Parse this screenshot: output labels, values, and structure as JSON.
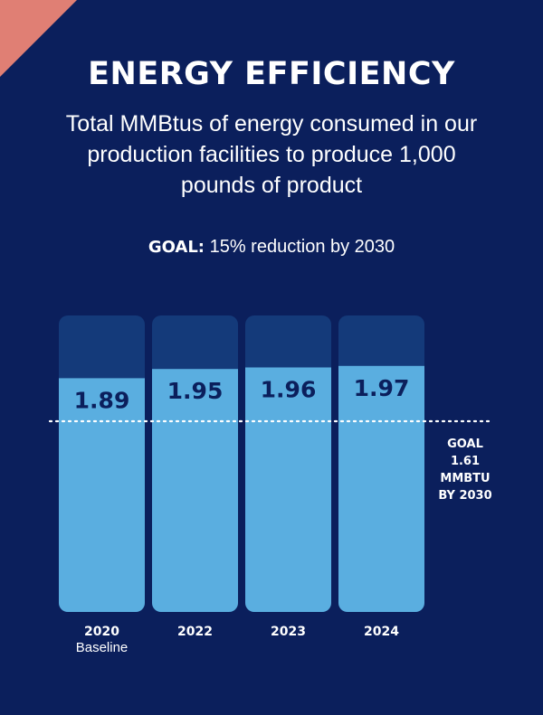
{
  "header": {
    "title": "ENERGY EFFICIENCY",
    "subtitle": "Total MMBtus of energy consumed in our production facilities to produce 1,000 pounds of product",
    "goal_label": "GOAL:",
    "goal_text": "15% reduction by 2030"
  },
  "goal_annotation": [
    "GOAL",
    "1.61",
    "MMBTU",
    "BY 2030"
  ],
  "colors": {
    "background": "#0b1f5c",
    "bar_track": "#143a7a",
    "bar_fill": "#5aaee0",
    "value_text": "#0b1f5c",
    "accent_corner": "#e07f74"
  },
  "chart_data": {
    "type": "bar",
    "categories": [
      "2020",
      "2022",
      "2023",
      "2024"
    ],
    "category_sublabels": [
      "Baseline",
      "",
      "",
      ""
    ],
    "values": [
      1.89,
      1.95,
      1.96,
      1.97
    ],
    "goal_value": 1.61,
    "title": "ENERGY EFFICIENCY",
    "xlabel": "",
    "ylabel": "",
    "grid": false,
    "legend": "none"
  }
}
